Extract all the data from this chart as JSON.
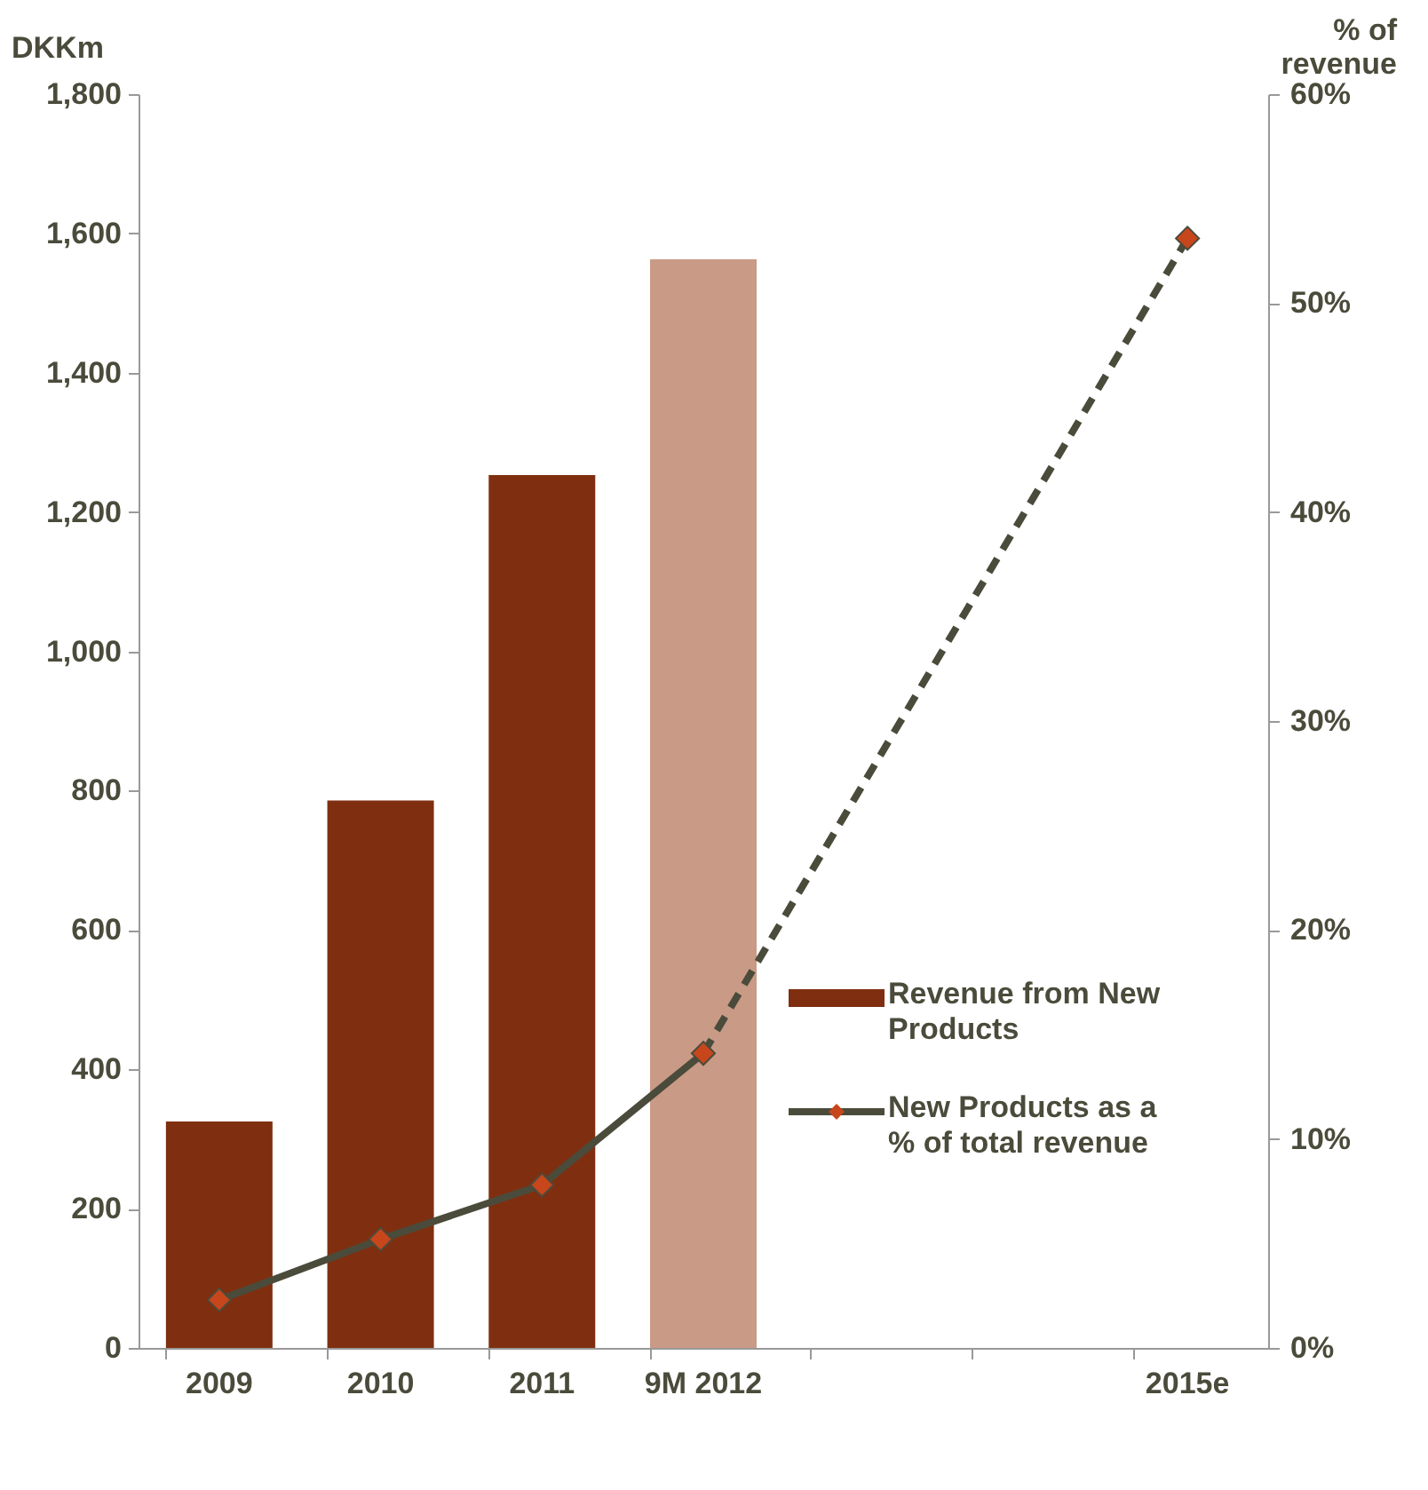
{
  "chart_data": {
    "type": "bar",
    "categories": [
      "2009",
      "2010",
      "2011",
      "9M 2012",
      null,
      null,
      "2015e"
    ],
    "series": [
      {
        "name": "Revenue from New Products",
        "colors": [
          "#7f2f10",
          "#7f2f10",
          "#7f2f10",
          "#c99a86",
          null,
          null,
          null
        ],
        "color": "#7f2f10",
        "values": [
          325,
          786,
          1253,
          1563,
          null,
          null,
          null
        ]
      },
      {
        "name": "New Products as a % of total revenue",
        "type": "line",
        "axis": "y2",
        "color": "#4b4b3b",
        "marker": "diamond",
        "line_style": "solid",
        "values": [
          2.3,
          5.2,
          7.8,
          14.1,
          null,
          null,
          53.1
        ]
      }
    ],
    "ylabel": "DKKm",
    "y2label": "% of revenue",
    "ylim": [
      0,
      1800
    ],
    "yticks": [
      0,
      200,
      400,
      600,
      800,
      {
        "value": 1000,
        "label": "1,000"
      },
      {
        "value": 1200,
        "label": "1,200"
      },
      {
        "value": 1400,
        "label": "1,400"
      },
      {
        "value": 1600,
        "label": "1,600"
      },
      {
        "value": 1800,
        "label": "1,800"
      }
    ],
    "y2lim": [
      0,
      60
    ],
    "y2ticks": [
      {
        "value": 0,
        "label": "0%"
      },
      {
        "value": 10,
        "label": "10%"
      },
      {
        "value": 20,
        "label": "20%"
      },
      {
        "value": 30,
        "label": "30%"
      },
      {
        "value": 40,
        "label": "40%"
      },
      {
        "value": 50,
        "label": "50%"
      },
      {
        "value": 60,
        "label": "60%"
      }
    ],
    "grid": false,
    "legend": "right"
  }
}
